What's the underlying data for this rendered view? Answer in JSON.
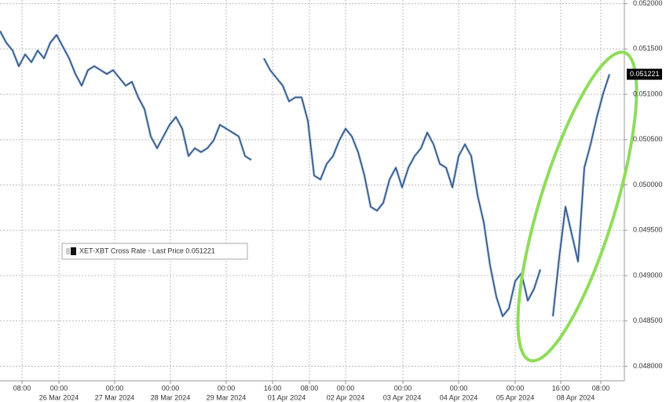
{
  "chart_data": {
    "type": "line",
    "series": [
      {
        "name": "XET-XBT Cross Rate - Last Price",
        "color": "#2b4f80",
        "values": [
          0.051698,
          0.051569,
          0.051483,
          0.05131,
          0.05144,
          0.051353,
          0.051483,
          0.051397,
          0.051569,
          0.051655,
          0.051526,
          0.051397,
          0.051224,
          0.051095,
          0.051267,
          0.05131,
          0.051267,
          0.051224,
          0.051267,
          0.051181,
          0.051095,
          0.051138,
          0.050966,
          0.050836,
          0.050535,
          0.050405,
          0.050535,
          0.050664,
          0.05075,
          0.050621,
          0.050319,
          0.050405,
          0.050362,
          0.050405,
          0.050491,
          0.050664,
          0.050621,
          0.050578,
          0.050535,
          0.050319,
          0.050276,
          null,
          0.051397,
          0.051267,
          0.051181,
          0.051095,
          0.050922,
          0.050966,
          0.050966,
          0.050707,
          0.050104,
          0.05006,
          0.050233,
          0.050319,
          0.050491,
          0.050621,
          0.050535,
          0.050362,
          0.050104,
          0.049759,
          0.049716,
          0.049802,
          0.05006,
          0.05019,
          0.049974,
          0.05019,
          0.050319,
          0.050405,
          0.050578,
          0.050448,
          0.050233,
          0.05019,
          0.049974,
          0.050319,
          0.050448,
          0.050319,
          0.049888,
          0.049586,
          0.049112,
          0.048767,
          0.048552,
          0.048638,
          0.04894,
          0.049026,
          0.048724,
          0.048854,
          0.049069,
          null,
          0.048552,
          0.049198,
          0.049759,
          0.049457,
          0.049155,
          0.05019,
          0.050448,
          0.05075,
          0.051009,
          0.051221
        ]
      }
    ],
    "xlim": [
      0,
      99.375
    ],
    "xticks": [
      {
        "value": 3.5,
        "label": "08:00"
      },
      {
        "value": 9.375,
        "label": "00:00"
      },
      {
        "value": 18.25,
        "label": "00:00"
      },
      {
        "value": 27.125,
        "label": "00:00"
      },
      {
        "value": 36,
        "label": "00:00"
      },
      {
        "value": 43.375,
        "label": "16:00"
      },
      {
        "value": 49.25,
        "label": "08:00"
      },
      {
        "value": 55,
        "label": "00:00"
      },
      {
        "value": 64.125,
        "label": "00:00"
      },
      {
        "value": 73,
        "label": "00:00"
      },
      {
        "value": 82,
        "label": "00:00"
      },
      {
        "value": 89.25,
        "label": "16:00"
      },
      {
        "value": 95.625,
        "label": "08:00"
      }
    ],
    "date_labels": [
      {
        "value": 9.375,
        "label": "26 Mar 2024"
      },
      {
        "value": 18.25,
        "label": "27 Mar 2024"
      },
      {
        "value": 27.125,
        "label": "28 Mar 2024"
      },
      {
        "value": 36,
        "label": "29 Mar 2024"
      },
      {
        "value": 45.625,
        "label": "01 Apr 2024"
      },
      {
        "value": 55,
        "label": "02 Apr 2024"
      },
      {
        "value": 64,
        "label": "03 Apr 2024"
      },
      {
        "value": 73,
        "label": "04 Apr 2024"
      },
      {
        "value": 82,
        "label": "05 Apr 2024"
      },
      {
        "value": 91.625,
        "label": "08 Apr 2024"
      }
    ],
    "ylim": [
      0.04784,
      0.05204
    ],
    "yticks": [
      {
        "value": 0.048,
        "label": "0.048000"
      },
      {
        "value": 0.0485,
        "label": "0.048500"
      },
      {
        "value": 0.049,
        "label": "0.049000"
      },
      {
        "value": 0.0495,
        "label": "0.049500"
      },
      {
        "value": 0.05,
        "label": "0.050000"
      },
      {
        "value": 0.0505,
        "label": "0.050500"
      },
      {
        "value": 0.051,
        "label": "0.051000"
      },
      {
        "value": 0.0515,
        "label": "0.051500"
      },
      {
        "value": 0.052,
        "label": "0.052000"
      }
    ],
    "grid": true
  }
}
